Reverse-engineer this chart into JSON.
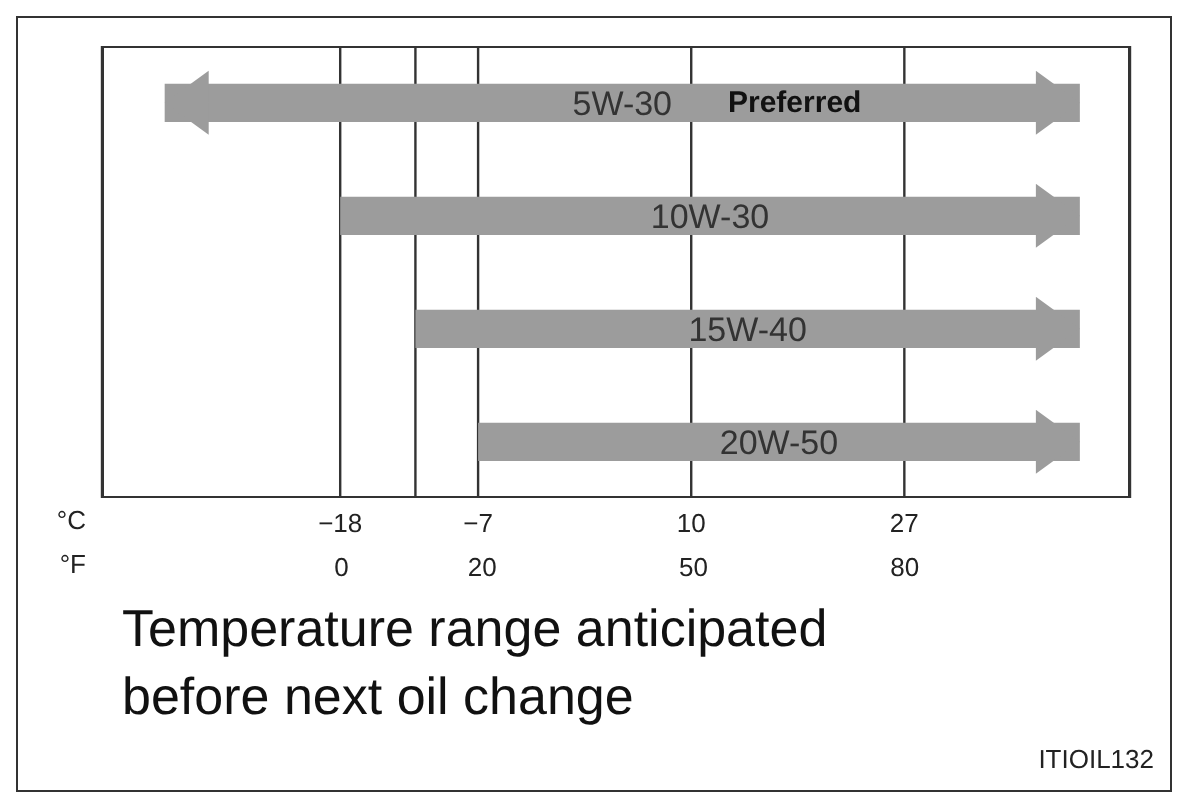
{
  "chart_data": {
    "type": "bar",
    "orientation": "horizontal",
    "categories": [
      "5W-30",
      "10W-30",
      "15W-40",
      "20W-50"
    ],
    "base": [
      -32,
      -18,
      -12,
      -7
    ],
    "values": [
      73,
      59,
      53,
      48
    ],
    "color": "#9c9c9c",
    "xlim": [
      -37,
      45
    ],
    "xticks": [
      -18,
      {
        "value": -12,
        "label": null
      },
      -7,
      10,
      27
    ],
    "x2lim": [
      -34,
      112
    ],
    "x2ticks": [
      0,
      20,
      50,
      80
    ],
    "xlabel": "°C",
    "x2label": "°F",
    "tick_labels": "x",
    "grid": "x",
    "annotations": [
      "Preferred",
      "Temperature range anticipated before next oil change",
      "ITIOIL132"
    ]
  }
}
